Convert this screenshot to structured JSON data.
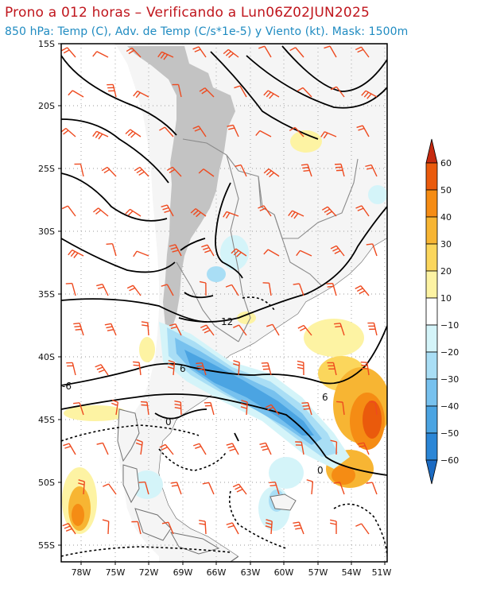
{
  "header": {
    "title": "Prono a 012 horas – Verificando a Lun06Z02JUN2025",
    "subtitle": "850 hPa: Temp (C), Adv. de Temp (C/s*1e-5) y Viento (kt). Mask: 1500m"
  },
  "axes": {
    "lat_labels": [
      "15S",
      "20S",
      "25S",
      "30S",
      "35S",
      "40S",
      "45S",
      "50S",
      "55S"
    ],
    "lon_labels": [
      "78W",
      "75W",
      "72W",
      "69W",
      "66W",
      "63W",
      "60W",
      "57W",
      "54W",
      "51W"
    ]
  },
  "isotherm_labels": [
    "12",
    "6",
    "-6",
    "6",
    "0",
    "0"
  ],
  "colorbar": {
    "labels": [
      "60",
      "50",
      "40",
      "30",
      "20",
      "10",
      "−10",
      "−20",
      "−30",
      "−40",
      "−50",
      "−60"
    ],
    "colors": [
      "#c62a10",
      "#ea5a0c",
      "#f58c14",
      "#f7b533",
      "#fbd65c",
      "#fdf3a3",
      "#ffffff",
      "#d4f4f9",
      "#a9def5",
      "#77c1ee",
      "#4ba4e2",
      "#2b86d6",
      "#1c6bc2"
    ]
  },
  "colors": {
    "wind_barb": "#ee4a1f",
    "isotherm": "#000000",
    "terrain_mask": "#c3c3c3",
    "land": "#f5f5f5",
    "coast": "#707070"
  }
}
